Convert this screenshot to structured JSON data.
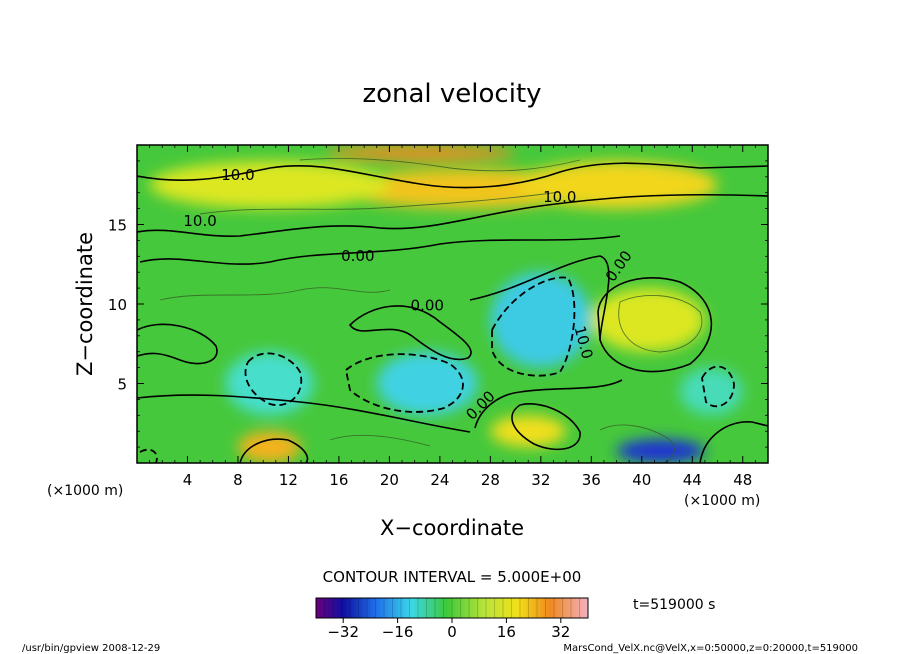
{
  "chart_data": {
    "type": "heatmap",
    "title": "zonal velocity",
    "xlabel": "X−coordinate",
    "ylabel": "Z−coordinate",
    "x_unit_left": "(×1000 m)",
    "x_unit_right": "(×1000 m)",
    "x_ticks": [
      4,
      8,
      12,
      16,
      20,
      24,
      28,
      32,
      36,
      40,
      44,
      48
    ],
    "y_ticks": [
      5,
      10,
      15
    ],
    "xlim": [
      0,
      50
    ],
    "ylim": [
      0,
      20
    ],
    "contour_interval_label": "CONTOUR INTERVAL = 5.000E+00",
    "contour_labels": [
      "10.0",
      "10.0",
      "10.0",
      "0.00",
      "0.00",
      "0.00",
      "10.0",
      "0.00"
    ],
    "time_label": "t=519000 s",
    "colorbar": {
      "range": [
        -40,
        40
      ],
      "ticks": [
        -32,
        -16,
        0,
        16,
        32
      ],
      "tick_labels": [
        "−32",
        "−16",
        "0",
        "16",
        "32"
      ]
    },
    "regions": [
      {
        "name": "jet-core",
        "x": [
          15,
          30
        ],
        "z": [
          19,
          20
        ],
        "value": 25
      },
      {
        "name": "upper-yellow",
        "x": [
          16,
          36
        ],
        "z": [
          16,
          18.5
        ],
        "value": 18
      },
      {
        "name": "right-yellow",
        "x": [
          30,
          46
        ],
        "z": [
          16,
          19
        ],
        "value": 16
      },
      {
        "name": "upper-left-yellow",
        "x": [
          1,
          20
        ],
        "z": [
          16,
          19
        ],
        "value": 12
      },
      {
        "name": "cyan-center",
        "x": [
          19,
          27
        ],
        "z": [
          3,
          7
        ],
        "value": -10
      },
      {
        "name": "cyan-mid",
        "x": [
          28,
          36
        ],
        "z": [
          6,
          12
        ],
        "value": -11
      },
      {
        "name": "cyan-left",
        "x": [
          7,
          14
        ],
        "z": [
          3,
          7
        ],
        "value": -7
      },
      {
        "name": "yellow-eddy",
        "x": [
          36,
          45
        ],
        "z": [
          7,
          11
        ],
        "value": 12
      },
      {
        "name": "bottom-yellow-1",
        "x": [
          8,
          13
        ],
        "z": [
          0,
          2
        ],
        "value": 20
      },
      {
        "name": "bottom-yellow-2",
        "x": [
          28,
          34
        ],
        "z": [
          1,
          3
        ],
        "value": 15
      },
      {
        "name": "bottom-blue",
        "x": [
          38,
          45
        ],
        "z": [
          0,
          1.5
        ],
        "value": -30
      },
      {
        "name": "right-cyan",
        "x": [
          43,
          48
        ],
        "z": [
          3,
          6
        ],
        "value": -6
      }
    ]
  },
  "footer": {
    "left": "/usr/bin/gpview  2008-12-29",
    "right": "MarsCond_VelX.nc@VelX,x=0:50000,z=0:20000,t=519000"
  },
  "colors": {
    "background": "#ffffff",
    "field_base": "#44c63a",
    "positive": "#f0ec1a",
    "strong_positive": "#f0a020",
    "negative": "#50e8e0",
    "strong_negative": "#2040e0",
    "contour": "#000000"
  }
}
